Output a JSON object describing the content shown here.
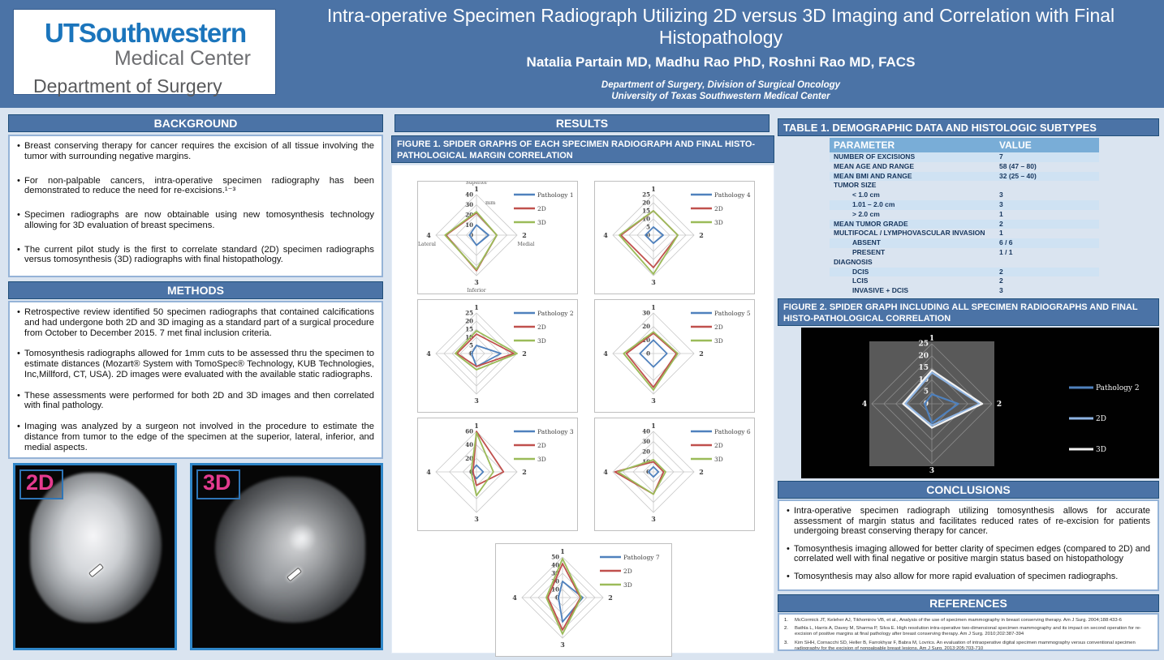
{
  "header": {
    "logo_line1": "UTSouthwestern",
    "logo_line2": "Medical Center",
    "logo_line3": "Department of Surgery",
    "title": "Intra-operative Specimen Radiograph Utilizing 2D versus 3D Imaging and Correlation with Final Histopathology",
    "authors": "Natalia Partain MD, Madhu Rao PhD, Roshni Rao MD, FACS",
    "affiliation1": "Department of Surgery, Division of Surgical Oncology",
    "affiliation2": "University of Texas Southwestern Medical Center"
  },
  "background": {
    "title": "BACKGROUND",
    "bullets": [
      "Breast conserving therapy for cancer requires the excision of all tissue involving the tumor with surrounding negative margins.",
      "For non-palpable cancers, intra-operative specimen radiography has been demonstrated to reduce the need for re-excisions.¹⁻³",
      "Specimen radiographs are now obtainable using new tomosynthesis technology allowing for 3D evaluation of breast specimens.",
      "The current pilot study is the first to correlate standard (2D) specimen radiographs versus tomosynthesis (3D) radiographs with final histopathology."
    ]
  },
  "methods": {
    "title": "METHODS",
    "bullets": [
      "Retrospective review identified 50 specimen radiographs that contained calcifications and had undergone both 2D and 3D imaging as a standard part of a surgical procedure from October to December 2015. 7 met final inclusion criteria.",
      "Tomosynthesis radiographs allowed for 1mm cuts to be assessed thru the specimen to estimate distances (Mozart® System with TomoSpec® Technology, KUB Technologies, Inc,Millford, CT, USA). 2D images were evaluated with the available static radiographs.",
      "These assessments were performed for both 2D and 3D images and then correlated with final pathology.",
      "Imaging was analyzed by a surgeon not involved in the procedure to estimate the distance from tumor to the edge of the specimen at the superior, lateral, inferior, and medial aspects."
    ]
  },
  "images": {
    "label_2d": "2D",
    "label_3d": "3D"
  },
  "results": {
    "title": "RESULTS",
    "figure1_title": "FIGURE 1. SPIDER GRAPHS OF EACH SPECIMEN RADIOGRAPH AND FINAL HISTO-PATHOLOGICAL MARGIN CORRELATION"
  },
  "table": {
    "title": "TABLE 1. DEMOGRAPHIC DATA AND HISTOLOGIC SUBTYPES",
    "headers": [
      "PARAMETER",
      "VALUE"
    ],
    "rows": [
      {
        "p": "NUMBER OF EXCISIONS",
        "v": "7",
        "shaded": true
      },
      {
        "p": "MEAN AGE AND RANGE",
        "v": "58 (47 – 80)"
      },
      {
        "p": "MEAN BMI AND RANGE",
        "v": "32 (25 – 40)",
        "shaded": true
      },
      {
        "p": "TUMOR SIZE",
        "v": ""
      },
      {
        "p": "< 1.0 cm",
        "v": "3",
        "indent": true
      },
      {
        "p": "1.01 – 2.0 cm",
        "v": "3",
        "indent": true,
        "shaded": true
      },
      {
        "p": "> 2.0 cm",
        "v": "1",
        "indent": true
      },
      {
        "p": "MEAN TUMOR GRADE",
        "v": "2",
        "shaded": true
      },
      {
        "p": "MULTIFOCAL / LYMPHOVASCULAR INVASION",
        "v": "1"
      },
      {
        "p": "ABSENT",
        "v": "6 / 6",
        "indent": true,
        "shaded": true
      },
      {
        "p": "PRESENT",
        "v": "1 / 1",
        "indent": true
      },
      {
        "p": "DIAGNOSIS",
        "v": ""
      },
      {
        "p": "DCIS",
        "v": "2",
        "indent": true,
        "shaded": true
      },
      {
        "p": "LCIS",
        "v": "2",
        "indent": true
      },
      {
        "p": "INVASIVE + DCIS",
        "v": "3",
        "indent": true
      }
    ]
  },
  "figure2": {
    "title": "FIGURE 2. SPIDER GRAPH INCLUDING ALL SPECIMEN RADIOGRAPHS AND FINAL HISTO-PATHOLOGICAL CORRELATION"
  },
  "conclusions": {
    "title": "CONCLUSIONS",
    "bullets": [
      "Intra-operative specimen radiograph utilizing tomosynthesis allows for accurate assessment of margin status and facilitates reduced rates of re-excision for patients undergoing breast conserving therapy for cancer.",
      "Tomosynthesis imaging allowed for better clarity of specimen edges (compared to 2D) and correlated well with final negative or positive margin status based on histopathology",
      "Tomosynthesis may also allow for more rapid evaluation of specimen radiographs."
    ]
  },
  "references": {
    "title": "REFERENCES",
    "items": [
      "McCormick JT, Keleher AJ, Tikhomirov VB, et al., Analysis of the use of specimen mammography in breast conserving therapy. Am J Surg. 2004;188:433-6",
      "Bathla L, Harris A, Davey M, Sharma P, Silva E. High resolution intra-operative two-dimensional specimen mammography and its impact on second operation for re-excision of positive margins at final pathology after breast conserving therapy. Am J Surg. 2010;202:387-394",
      "Kim SHH, Cornacchi SD, Heller B, Farrokhyar F, Babra M, Lovrics. An evaluation of intraoperative digital specimen mammography versus conventional specimen radiography for the excision of nonpalpable breast lesions. Am J Surg. 2013;205:703-710"
    ]
  },
  "chart_data": {
    "figure1": [
      {
        "type": "radar",
        "name": "Pathology 1",
        "axes": [
          "1",
          "2",
          "3",
          "4"
        ],
        "axis_titles": [
          "Superior",
          "Medial",
          "Inferior",
          "Lateral"
        ],
        "unit": "mm",
        "max": 40,
        "tick_step": 10,
        "series": [
          {
            "name": "Pathology 1",
            "color": "#4f81bd",
            "values": [
              10,
              12,
              10,
              7
            ]
          },
          {
            "name": "2D",
            "color": "#c0504d",
            "values": [
              22,
              20,
              35,
              30
            ]
          },
          {
            "name": "3D",
            "color": "#9bbb59",
            "values": [
              23,
              20,
              34,
              31
            ]
          }
        ]
      },
      {
        "type": "radar",
        "name": "Pathology 4",
        "axes": [
          "1",
          "2",
          "3",
          "4"
        ],
        "max": 25,
        "tick_step": 5,
        "series": [
          {
            "name": "Pathology 4",
            "color": "#4f81bd",
            "values": [
              5,
              6,
              5,
              5
            ]
          },
          {
            "name": "2D",
            "color": "#c0504d",
            "values": [
              15,
              15,
              20,
              20
            ]
          },
          {
            "name": "3D",
            "color": "#9bbb59",
            "values": [
              15,
              15,
              24,
              21
            ]
          }
        ]
      },
      {
        "type": "radar",
        "name": "Pathology 2",
        "axes": [
          "1",
          "2",
          "3",
          "4"
        ],
        "max": 25,
        "tick_step": 5,
        "series": [
          {
            "name": "Pathology 2",
            "color": "#4f81bd",
            "values": [
              5,
              15,
              8,
              3
            ]
          },
          {
            "name": "2D",
            "color": "#c0504d",
            "values": [
              12,
              23,
              8,
              12
            ]
          },
          {
            "name": "3D",
            "color": "#9bbb59",
            "values": [
              14,
              25,
              10,
              13
            ]
          }
        ]
      },
      {
        "type": "radar",
        "name": "Pathology 5",
        "axes": [
          "1",
          "2",
          "3",
          "4"
        ],
        "max": 30,
        "tick_step": 10,
        "series": [
          {
            "name": "Pathology 5",
            "color": "#4f81bd",
            "values": [
              10,
              10,
              10,
              10
            ]
          },
          {
            "name": "2D",
            "color": "#c0504d",
            "values": [
              15,
              17,
              25,
              20
            ]
          },
          {
            "name": "3D",
            "color": "#9bbb59",
            "values": [
              16,
              18,
              27,
              22
            ]
          }
        ]
      },
      {
        "type": "radar",
        "name": "Pathology 3",
        "axes": [
          "1",
          "2",
          "3",
          "4"
        ],
        "max": 60,
        "tick_step": 20,
        "series": [
          {
            "name": "Pathology 3",
            "color": "#4f81bd",
            "values": [
              10,
              10,
              10,
              8
            ]
          },
          {
            "name": "2D",
            "color": "#c0504d",
            "values": [
              60,
              40,
              20,
              5
            ]
          },
          {
            "name": "3D",
            "color": "#9bbb59",
            "values": [
              58,
              25,
              35,
              8
            ]
          }
        ]
      },
      {
        "type": "radar",
        "name": "Pathology 6",
        "axes": [
          "1",
          "2",
          "3",
          "4"
        ],
        "max": 40,
        "tick_step": 10,
        "series": [
          {
            "name": "Pathology 6",
            "color": "#4f81bd",
            "values": [
              5,
              5,
              5,
              5
            ]
          },
          {
            "name": "2D",
            "color": "#c0504d",
            "values": [
              10,
              10,
              22,
              38
            ]
          },
          {
            "name": "3D",
            "color": "#9bbb59",
            "values": [
              12,
              12,
              22,
              35
            ]
          }
        ]
      },
      {
        "type": "radar",
        "name": "Pathology 7",
        "axes": [
          "1",
          "2",
          "3",
          "4"
        ],
        "max": 50,
        "tick_step": 10,
        "series": [
          {
            "name": "Pathology 7",
            "color": "#4f81bd",
            "values": [
              20,
              25,
              30,
              5
            ]
          },
          {
            "name": "2D",
            "color": "#c0504d",
            "values": [
              42,
              22,
              40,
              18
            ]
          },
          {
            "name": "3D",
            "color": "#9bbb59",
            "values": [
              48,
              23,
              45,
              20
            ]
          }
        ]
      }
    ],
    "figure2": {
      "type": "radar",
      "name": "All specimens",
      "axes": [
        "1",
        "2",
        "3",
        "4"
      ],
      "max": 25,
      "tick_step": 5,
      "series": [
        {
          "name": "Pathology 2",
          "color": "#4f81bd",
          "values": [
            4,
            11,
            8,
            3
          ]
        },
        {
          "name": "2D",
          "color": "#8eb4e3",
          "values": [
            13,
            20,
            9,
            11
          ]
        },
        {
          "name": "3D",
          "color": "#f2f2f2",
          "values": [
            14,
            21,
            10,
            12
          ]
        }
      ]
    }
  },
  "colors": {
    "accent_blue": "#4b73a6",
    "page_background": "#dae4f0",
    "table_stripe": "#cfe2f3",
    "label_pink": "#e43b8f",
    "series_blue": "#4f81bd",
    "series_red": "#c0504d",
    "series_green": "#9bbb59"
  }
}
